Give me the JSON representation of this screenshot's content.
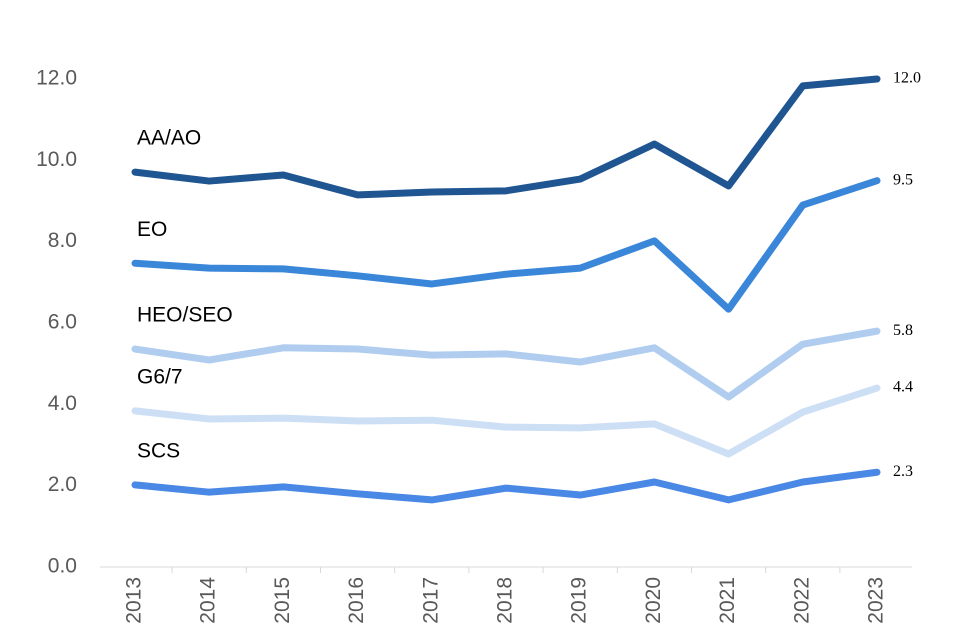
{
  "chart_data": {
    "type": "line",
    "categories": [
      "2013",
      "2014",
      "2015",
      "2016",
      "2017",
      "2018",
      "2019",
      "2020",
      "2021",
      "2022",
      "2023"
    ],
    "series": [
      {
        "name": "AA/AO",
        "color": "#1f5591",
        "values": [
          9.71,
          9.49,
          9.64,
          9.15,
          9.22,
          9.25,
          9.54,
          10.4,
          9.37,
          11.83,
          12.0
        ],
        "value_labels": [
          null,
          null,
          null,
          null,
          null,
          null,
          null,
          null,
          null,
          null,
          "12.0"
        ]
      },
      {
        "name": "EO",
        "color": "#3a86d8",
        "values": [
          7.47,
          7.35,
          7.33,
          7.16,
          6.96,
          7.2,
          7.35,
          8.02,
          6.34,
          8.9,
          9.5
        ],
        "value_labels": [
          null,
          null,
          null,
          null,
          null,
          null,
          null,
          null,
          null,
          null,
          "9.5"
        ]
      },
      {
        "name": "HEO/SEO",
        "color": "#b0cdf0",
        "values": [
          5.36,
          5.09,
          5.39,
          5.36,
          5.21,
          5.24,
          5.04,
          5.39,
          4.18,
          5.48,
          5.8
        ],
        "value_labels": [
          null,
          null,
          null,
          null,
          null,
          null,
          null,
          null,
          null,
          null,
          "5.8"
        ]
      },
      {
        "name": "G6/7",
        "color": "#cddff5",
        "values": [
          3.84,
          3.64,
          3.66,
          3.59,
          3.61,
          3.44,
          3.42,
          3.52,
          2.78,
          3.81,
          4.4
        ],
        "value_labels": [
          null,
          null,
          null,
          null,
          null,
          null,
          null,
          null,
          null,
          null,
          "4.4"
        ]
      },
      {
        "name": "SCS",
        "color": "#4a88e6",
        "values": [
          2.02,
          1.84,
          1.97,
          1.8,
          1.65,
          1.94,
          1.77,
          2.09,
          1.65,
          2.09,
          2.33
        ],
        "value_labels": [
          null,
          null,
          null,
          null,
          null,
          null,
          null,
          null,
          null,
          null,
          "2.3"
        ]
      }
    ],
    "ylim": [
      0,
      12
    ],
    "yticks": [
      {
        "value": 0,
        "label": "0.0"
      },
      {
        "value": 2,
        "label": "2.0"
      },
      {
        "value": 4,
        "label": "4.0"
      },
      {
        "value": 6,
        "label": "6.0"
      },
      {
        "value": 8,
        "label": "8.0"
      },
      {
        "value": 10,
        "label": "10.0"
      },
      {
        "value": 12,
        "label": "12.0"
      }
    ],
    "grid": false
  }
}
